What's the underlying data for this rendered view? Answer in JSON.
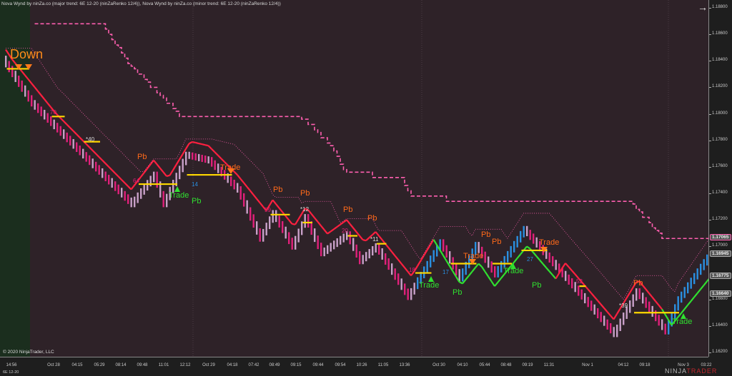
{
  "header": {
    "title": "Nova Wynd by ninZa.co (major trend: 6E 12-20 (ninZaRenko 12/4)), Nova Wynd by ninZa.co (minor trend: 6E 12-20 (ninZaRenko 12/4))"
  },
  "footer": {
    "copyright": "© 2020 NinjaTrader, LLC",
    "instrument": "6E 12-20",
    "logo_a": "NINJA",
    "logo_b": "TRADER"
  },
  "colors": {
    "background": "#2e2228",
    "down_bar": "#e0207a",
    "pullback_bar": "#c8a0c8",
    "up_bar": "#2a8fe0",
    "major_down": "#ff2040",
    "major_up": "#30e030",
    "stop_dashed": "#ff5fb0",
    "signal_level": "#ffd800"
  },
  "chart_data": {
    "type": "renko",
    "y_ticks": [
      "1.18800",
      "1.18600",
      "1.18400",
      "1.18200",
      "1.18000",
      "1.17800",
      "1.17600",
      "1.17400",
      "1.17200",
      "1.17000",
      "1.16600",
      "1.16400",
      "1.16200"
    ],
    "ylim": [
      1.1618,
      1.1885
    ],
    "x_ticks": [
      "14:56",
      "Oct 28",
      "04:15",
      "05:29",
      "08:14",
      "09:48",
      "11:01",
      "12:12",
      "Oct 29",
      "04:18",
      "07:42",
      "08:49",
      "09:15",
      "09:44",
      "09:54",
      "10:26",
      "11:05",
      "13:36",
      "Oct 30",
      "04:10",
      "05:44",
      "08:48",
      "09:19",
      "11:31",
      "Nov 1",
      "04:12",
      "09:18",
      "Nov 3",
      "03:22"
    ],
    "price_waypoints": [
      [
        1,
        1.18375
      ],
      [
        9,
        1.1808
      ],
      [
        40,
        1.1732
      ],
      [
        47,
        1.1754
      ],
      [
        50,
        1.1732
      ],
      [
        57,
        1.1769
      ],
      [
        64,
        1.1765
      ],
      [
        73,
        1.1743
      ],
      [
        80,
        1.1706
      ],
      [
        84,
        1.1725
      ],
      [
        90,
        1.17
      ],
      [
        94,
        1.1722
      ],
      [
        99,
        1.1695
      ],
      [
        107,
        1.1709
      ],
      [
        111,
        1.1689
      ],
      [
        116,
        1.17
      ],
      [
        126,
        1.1662
      ],
      [
        136,
        1.1703
      ],
      [
        142,
        1.1676
      ],
      [
        147,
        1.1701
      ],
      [
        153,
        1.1679
      ],
      [
        162,
        1.1713
      ],
      [
        169,
        1.1693
      ],
      [
        178,
        1.1668
      ],
      [
        190,
        1.1634
      ],
      [
        197,
        1.1666
      ],
      [
        206,
        1.1636
      ],
      [
        210,
        1.166
      ],
      [
        220,
        1.1695
      ]
    ],
    "price_tags": [
      {
        "value": "1.17065",
        "color": "#ff5fb0"
      },
      {
        "value": "1.16945",
        "color": "#555"
      },
      {
        "value": "1.16775",
        "color": "#555"
      },
      {
        "value": "1.16640",
        "color": "#555"
      }
    ],
    "annotations": {
      "down": "Down",
      "trade": "Trade",
      "pb": "Pb",
      "nums": [
        "70",
        "*40",
        "64",
        "14",
        "59",
        "*12",
        "20",
        "*11",
        "18",
        "17",
        "27",
        "52",
        "*39"
      ]
    }
  }
}
